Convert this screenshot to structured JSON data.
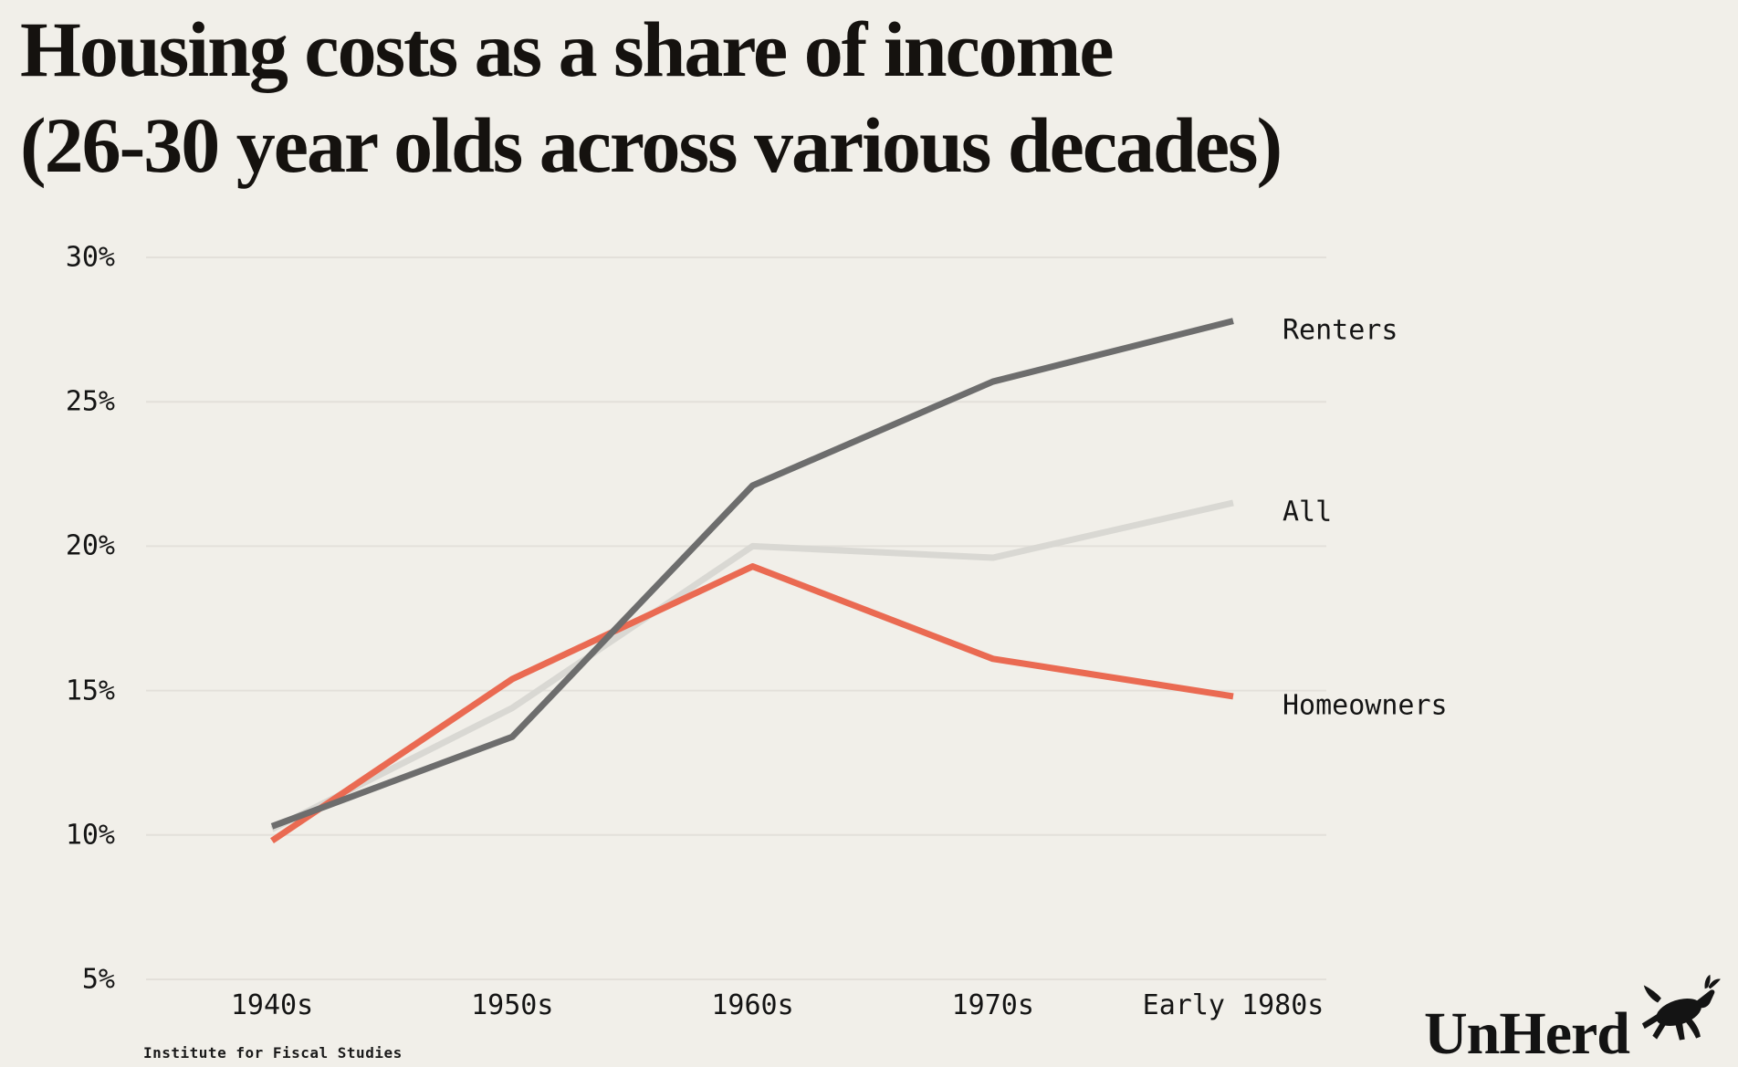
{
  "title": {
    "line1": "Housing costs as a share of income",
    "line2": "(26-30 year olds across various decades)"
  },
  "source": "Institute for Fiscal Studies",
  "logo": {
    "text": "UnHerd",
    "icon": "leaping-cow-icon"
  },
  "colors": {
    "background": "#f1efe9",
    "grid": "#e3e0da",
    "text": "#141414",
    "renters": "#6d6d6d",
    "all": "#d9d8d3",
    "homeowners": "#ea6a52"
  },
  "chart_data": {
    "type": "line",
    "title": "Housing costs as a share of income (26-30 year olds across various decades)",
    "xlabel": "",
    "ylabel": "",
    "categories": [
      "1940s",
      "1950s",
      "1960s",
      "1970s",
      "Early 1980s"
    ],
    "series": [
      {
        "name": "Renters",
        "color": "#6d6d6d",
        "values": [
          10.3,
          13.4,
          22.1,
          25.7,
          27.8
        ]
      },
      {
        "name": "All",
        "color": "#d9d8d3",
        "values": [
          10.2,
          14.4,
          20.0,
          19.6,
          21.5
        ]
      },
      {
        "name": "Homeowners",
        "color": "#ea6a52",
        "values": [
          9.8,
          15.4,
          19.3,
          16.1,
          14.8
        ]
      }
    ],
    "yticks": [
      "30%",
      "25%",
      "20%",
      "15%",
      "10%",
      "5%"
    ],
    "ylim": [
      5,
      30
    ],
    "grid": true,
    "legend_position": "right-of-line-ends"
  }
}
